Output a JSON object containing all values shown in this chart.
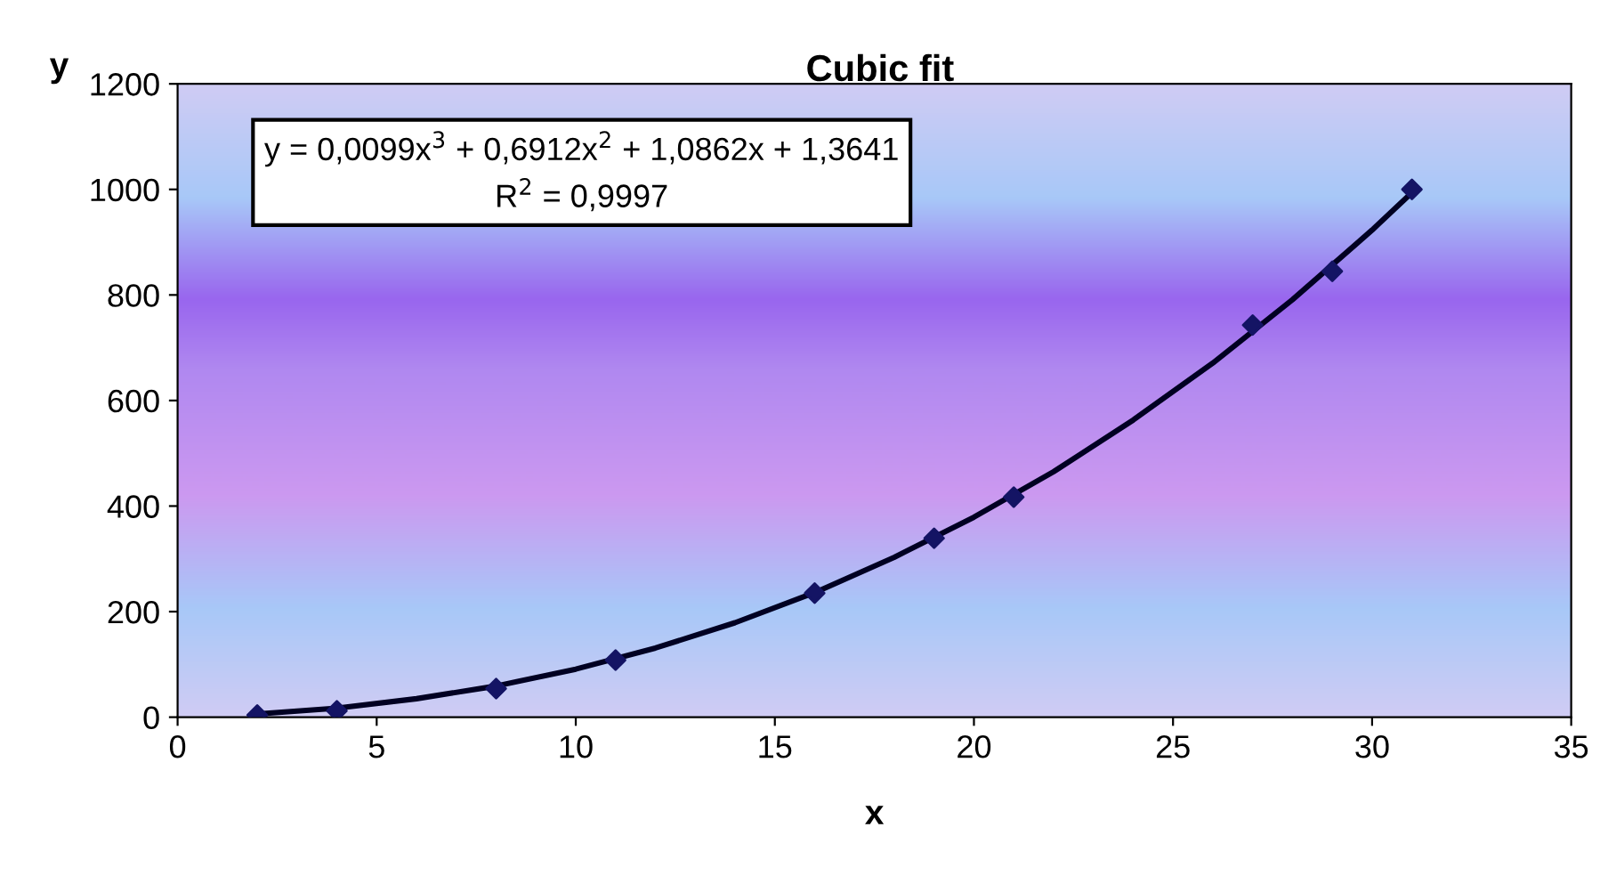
{
  "chart_data": {
    "type": "scatter",
    "title": "Cubic fit",
    "xlabel": "x",
    "ylabel": "y",
    "xlim": [
      0,
      35
    ],
    "xticks": [
      0,
      5,
      10,
      15,
      20,
      25,
      30,
      35
    ],
    "ylim": [
      0,
      1200
    ],
    "yticks": [
      0,
      200,
      400,
      600,
      800,
      1000,
      1200
    ],
    "grid": false,
    "legend": false,
    "annotations": [
      "y = 0,0099x$^{3}$ + 0,6912x$^{2}$ + 1,0862x + 1,3641\nR$^{2}$ = 0,9997"
    ],
    "series": [
      {
        "type": "line",
        "color": "#000022",
        "marker": "none",
        "x": [
          2,
          4,
          6,
          8,
          10,
          12,
          14,
          16,
          18,
          20,
          22,
          24,
          26,
          28,
          30,
          31
        ],
        "values": [
          6,
          17,
          35,
          59,
          91,
          131,
          179,
          236,
          303,
          379,
          465,
          563,
          671,
          791,
          923,
          994
        ]
      },
      {
        "color": "#141464",
        "marker": "diamond",
        "x": [
          2,
          4,
          8,
          11,
          16,
          19,
          21,
          27,
          29,
          31
        ],
        "values": [
          4,
          12,
          54,
          108,
          235,
          339,
          417,
          743,
          845,
          1000
        ]
      }
    ]
  }
}
